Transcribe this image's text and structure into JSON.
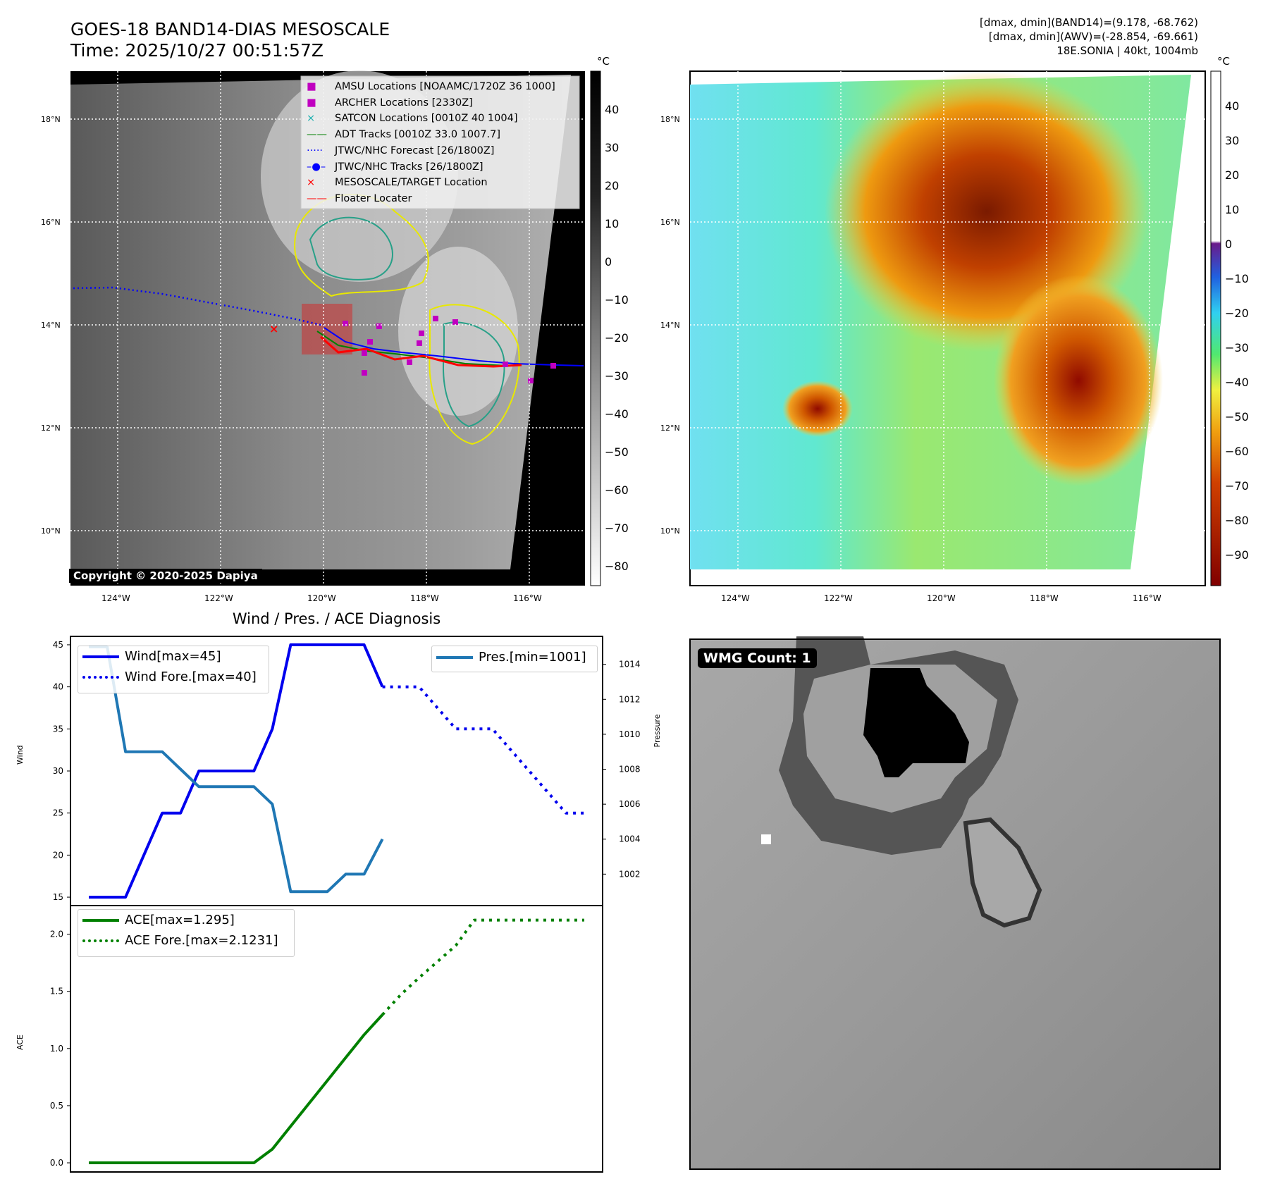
{
  "header": {
    "title": "GOES-18 BAND14-DIAS MESOSCALE",
    "time": "Time: 2025/10/27 00:51:57Z",
    "info_line1": "[dmax, dmin](BAND14)=(9.178, -68.762)",
    "info_line2": "[dmax, dmin](AWV)=(-28.854, -69.661)",
    "info_line3": "18E.SONIA | 40kt, 1004mb"
  },
  "map": {
    "lat_labels": [
      "18°N",
      "16°N",
      "14°N",
      "12°N",
      "10°N"
    ],
    "lon_labels": [
      "124°W",
      "122°W",
      "120°W",
      "118°W",
      "116°W"
    ],
    "copyright": "Copyright © 2020-2025 Dapiya",
    "legend": [
      {
        "label": "AMSU Locations [NOAAMC/1720Z 36 1000]",
        "color": "#c000c0",
        "marker": "square"
      },
      {
        "label": "ARCHER Locations [2330Z]",
        "color": "#c000c0",
        "marker": "square"
      },
      {
        "label": "SATCON Locations [0010Z 40 1004]",
        "color": "#20b0b0",
        "marker": "x"
      },
      {
        "label": "ADT Tracks [0010Z 33.0 1007.7]",
        "color": "#008000",
        "marker": "line"
      },
      {
        "label": "JTWC/NHC Forecast [26/1800Z]",
        "color": "#0000ff",
        "marker": "dotted"
      },
      {
        "label": "JTWC/NHC Tracks [26/1800Z]",
        "color": "#0000ff",
        "marker": "line-dot"
      },
      {
        "label": "MESOSCALE/TARGET Location",
        "color": "#ff0000",
        "marker": "x"
      },
      {
        "label": "Floater Locater",
        "color": "#ff0000",
        "marker": "line"
      }
    ],
    "colorbar_gray": {
      "unit": "°C",
      "ticks": [
        "40",
        "30",
        "20",
        "10",
        "0",
        "−10",
        "−20",
        "−30",
        "−40",
        "−50",
        "−60",
        "−70",
        "−80"
      ]
    },
    "colorbar_color": {
      "unit": "°C",
      "ticks": [
        "40",
        "30",
        "20",
        "10",
        "0",
        "−10",
        "−20",
        "−30",
        "−40",
        "−50",
        "−60",
        "−70",
        "−80",
        "−90"
      ]
    }
  },
  "wmg": {
    "label": "WMG Count: 1"
  },
  "chart_data": [
    {
      "type": "line",
      "title": "Wind / Pres. / ACE Diagnosis",
      "ylabel": "Wind",
      "ylabel_right": "Pressure",
      "ylim": [
        14,
        46
      ],
      "ylim_right": [
        1000.2,
        1015.6
      ],
      "xlim": [
        0,
        29
      ],
      "yticks": [
        15,
        20,
        25,
        30,
        35,
        40,
        45
      ],
      "yticks_right": [
        1002,
        1004,
        1006,
        1008,
        1010,
        1012,
        1014
      ],
      "series": [
        {
          "name": "Wind[max=45]",
          "axis": "left",
          "style": "solid",
          "color": "#0000ee",
          "x": [
            1,
            2,
            3,
            4,
            5,
            6,
            7,
            8,
            9,
            10,
            11,
            12,
            13,
            14,
            15,
            16,
            17
          ],
          "y": [
            15,
            15,
            15,
            20,
            25,
            25,
            30,
            30,
            30,
            30,
            35,
            45,
            45,
            45,
            45,
            45,
            40
          ]
        },
        {
          "name": "Wind Fore.[max=40]",
          "axis": "left",
          "style": "dotted",
          "color": "#0000ee",
          "x": [
            17,
            18,
            19,
            20,
            21,
            22,
            23,
            24,
            25,
            26,
            27,
            28
          ],
          "y": [
            40,
            40,
            40,
            37.5,
            35,
            35,
            35,
            32.5,
            30,
            27.5,
            25,
            25
          ]
        },
        {
          "name": "Pres.[min=1001]",
          "axis": "right",
          "style": "solid",
          "color": "#1f77b4",
          "x": [
            1,
            2,
            3,
            4,
            5,
            6,
            7,
            8,
            9,
            10,
            11,
            12,
            13,
            14,
            15,
            16,
            17
          ],
          "y": [
            1015,
            1015,
            1009,
            1009,
            1009,
            1008,
            1007,
            1007,
            1007,
            1007,
            1006,
            1001,
            1001,
            1001,
            1002,
            1002,
            1004
          ]
        }
      ]
    },
    {
      "type": "line",
      "ylabel": "ACE",
      "ylim": [
        -0.08,
        2.25
      ],
      "xlim": [
        0,
        29
      ],
      "yticks": [
        0.0,
        0.5,
        1.0,
        1.5,
        2.0
      ],
      "series": [
        {
          "name": "ACE[max=1.295]",
          "style": "solid",
          "color": "#008000",
          "x": [
            1,
            2,
            3,
            4,
            5,
            6,
            7,
            8,
            9,
            10,
            11,
            12,
            13,
            14,
            15,
            16,
            17
          ],
          "y": [
            0,
            0,
            0,
            0,
            0,
            0,
            0,
            0,
            0,
            0,
            0.12,
            0.32,
            0.52,
            0.72,
            0.92,
            1.12,
            1.295
          ]
        },
        {
          "name": "ACE Fore.[max=2.1231]",
          "style": "dotted",
          "color": "#008000",
          "x": [
            17,
            18,
            19,
            20,
            21,
            22,
            23,
            24,
            25,
            26,
            27,
            28
          ],
          "y": [
            1.295,
            1.47,
            1.62,
            1.76,
            1.9,
            2.1231,
            2.1231,
            2.1231,
            2.1231,
            2.1231,
            2.1231,
            2.1231
          ]
        }
      ]
    }
  ]
}
